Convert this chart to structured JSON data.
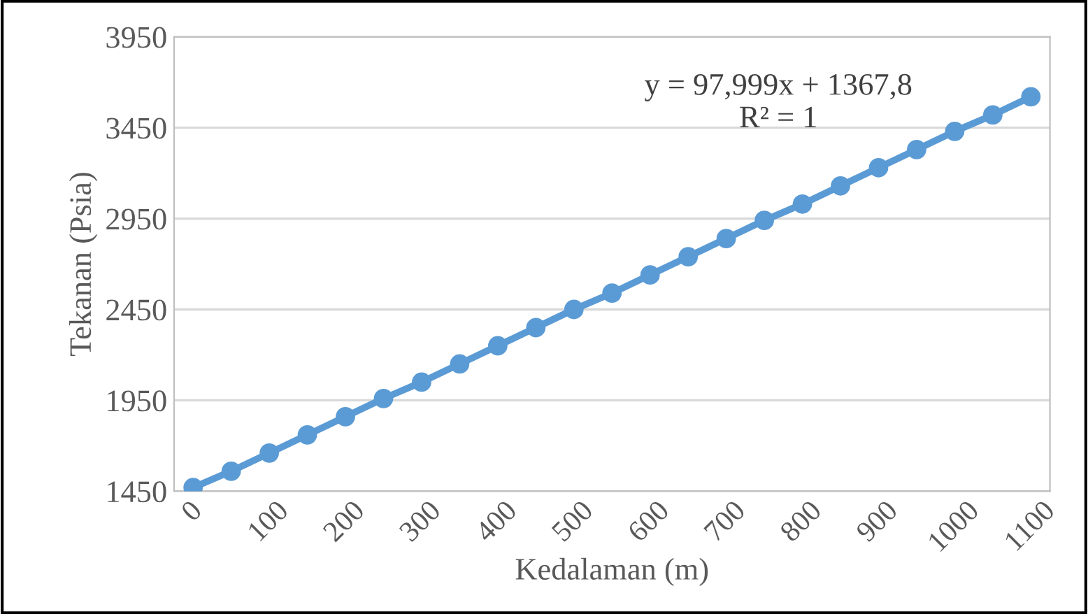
{
  "chart_data": {
    "type": "line",
    "xlabel": "Kedalaman (m)",
    "ylabel": "Tekanan (Psia)",
    "categories": [
      "0",
      null,
      "100",
      null,
      "200",
      null,
      "300",
      null,
      "400",
      null,
      "500",
      null,
      "600",
      null,
      "700",
      null,
      "800",
      null,
      "900",
      null,
      "1000",
      null,
      "1100"
    ],
    "series": [
      {
        "color": "#5b9bd5",
        "values": [
          1470,
          1560,
          1660,
          1760,
          1860,
          1960,
          2050,
          2150,
          2250,
          2350,
          2450,
          2540,
          2640,
          2740,
          2840,
          2940,
          3030,
          3130,
          3230,
          3330,
          3430,
          3520,
          3620
        ]
      }
    ],
    "ylim": [
      1450,
      3950
    ],
    "yticks": [
      1450,
      1950,
      2450,
      2950,
      3450,
      3950
    ],
    "grid": "y",
    "marker": "circle",
    "line_style": "solid",
    "annotations": [
      "y = 97,999x + 1367,8\nR² = 1"
    ]
  }
}
